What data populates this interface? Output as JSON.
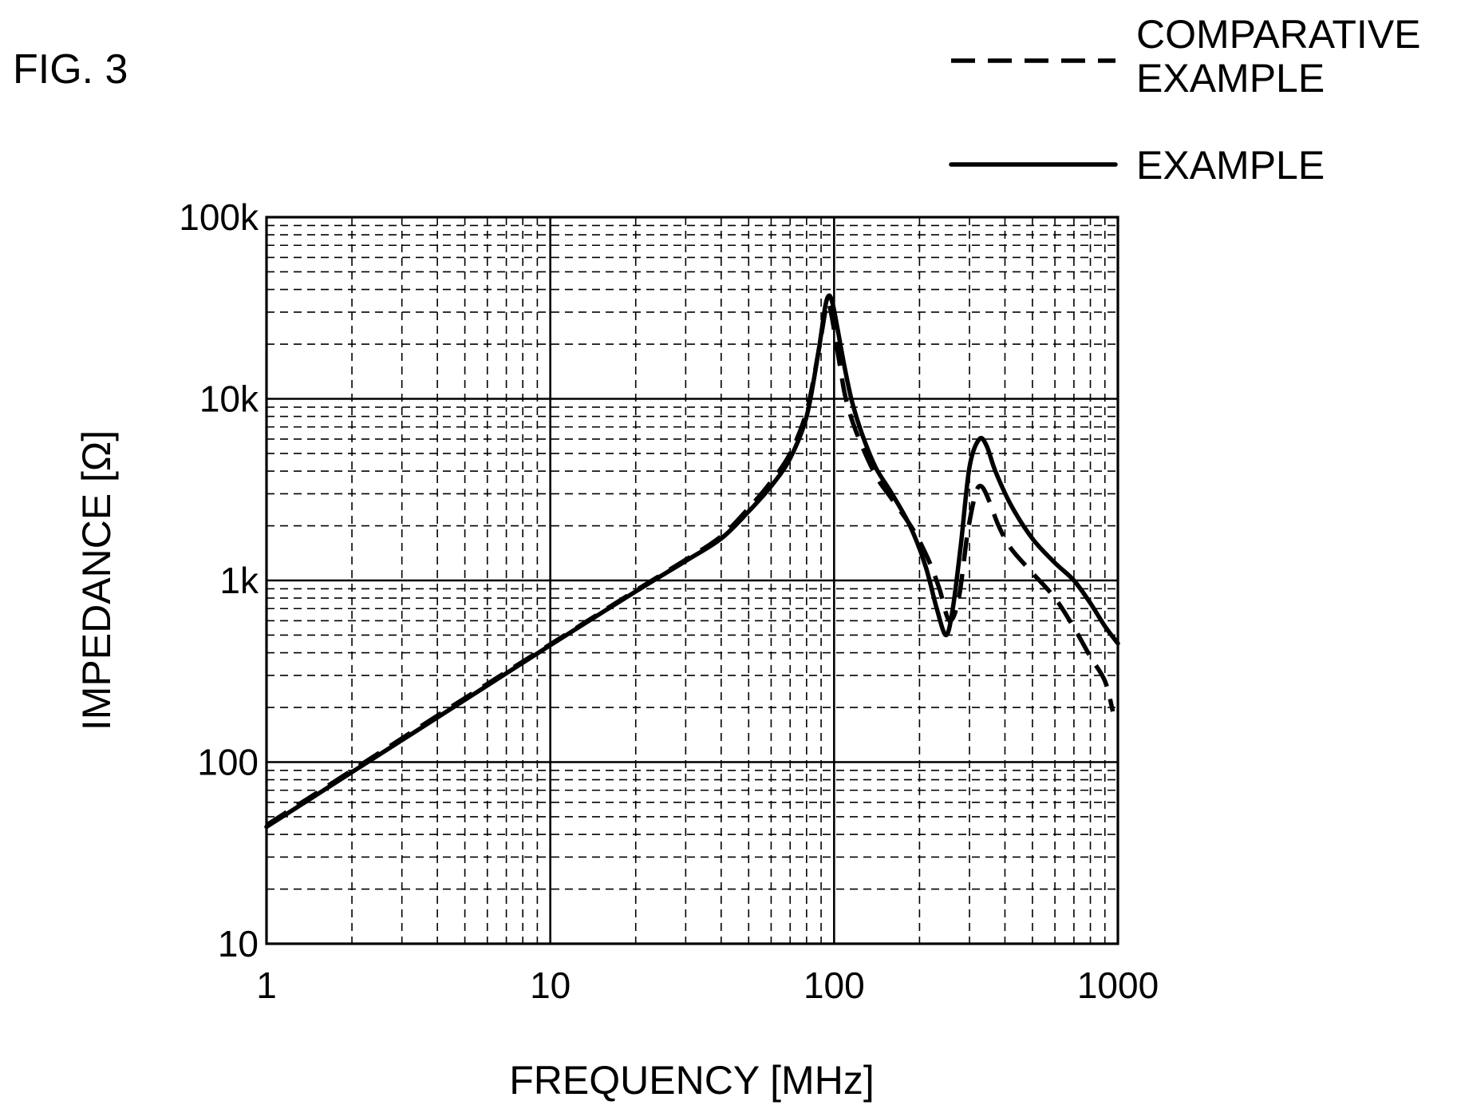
{
  "figure_label": "FIG. 3",
  "chart_data": {
    "type": "line",
    "xlabel": "FREQUENCY [MHz]",
    "ylabel": "IMPEDANCE [Ω]",
    "xscale": "log",
    "yscale": "log",
    "xlim": [
      1,
      1000
    ],
    "ylim": [
      10,
      100000
    ],
    "grid": true,
    "legend_position": "top-right",
    "x_ticks": [
      {
        "value": 1,
        "label": "1"
      },
      {
        "value": 10,
        "label": "10"
      },
      {
        "value": 100,
        "label": "100"
      },
      {
        "value": 1000,
        "label": "1000"
      }
    ],
    "y_ticks": [
      {
        "value": 10,
        "label": "10"
      },
      {
        "value": 100,
        "label": "100"
      },
      {
        "value": 1000,
        "label": "1k"
      },
      {
        "value": 10000,
        "label": "10k"
      },
      {
        "value": 100000,
        "label": "100k"
      }
    ],
    "series": [
      {
        "name": "COMPARATIVE EXAMPLE",
        "line_style": "dashed",
        "points": [
          [
            1,
            45
          ],
          [
            2,
            90
          ],
          [
            5,
            225
          ],
          [
            10,
            445
          ],
          [
            20,
            880
          ],
          [
            30,
            1300
          ],
          [
            40,
            1750
          ],
          [
            50,
            2500
          ],
          [
            60,
            3500
          ],
          [
            70,
            5000
          ],
          [
            80,
            8500
          ],
          [
            88,
            18000
          ],
          [
            93,
            30000
          ],
          [
            95,
            34000
          ],
          [
            97,
            31000
          ],
          [
            100,
            24000
          ],
          [
            105,
            15000
          ],
          [
            110,
            10000
          ],
          [
            120,
            6500
          ],
          [
            140,
            3800
          ],
          [
            160,
            2800
          ],
          [
            190,
            1900
          ],
          [
            215,
            1300
          ],
          [
            235,
            900
          ],
          [
            255,
            600
          ],
          [
            275,
            800
          ],
          [
            295,
            1800
          ],
          [
            315,
            3000
          ],
          [
            330,
            3300
          ],
          [
            350,
            2800
          ],
          [
            380,
            2000
          ],
          [
            420,
            1500
          ],
          [
            500,
            1100
          ],
          [
            600,
            800
          ],
          [
            700,
            550
          ],
          [
            800,
            380
          ],
          [
            900,
            280
          ],
          [
            960,
            190
          ]
        ]
      },
      {
        "name": "EXAMPLE",
        "line_style": "solid",
        "points": [
          [
            1,
            44
          ],
          [
            2,
            88
          ],
          [
            5,
            220
          ],
          [
            10,
            440
          ],
          [
            20,
            870
          ],
          [
            30,
            1280
          ],
          [
            40,
            1700
          ],
          [
            50,
            2400
          ],
          [
            60,
            3300
          ],
          [
            70,
            4700
          ],
          [
            80,
            8000
          ],
          [
            88,
            18000
          ],
          [
            93,
            32000
          ],
          [
            96,
            37000
          ],
          [
            99,
            33000
          ],
          [
            103,
            24000
          ],
          [
            108,
            16000
          ],
          [
            115,
            10000
          ],
          [
            125,
            6500
          ],
          [
            140,
            4200
          ],
          [
            160,
            3000
          ],
          [
            185,
            2000
          ],
          [
            210,
            1200
          ],
          [
            230,
            700
          ],
          [
            248,
            500
          ],
          [
            262,
            700
          ],
          [
            280,
            1600
          ],
          [
            300,
            4200
          ],
          [
            325,
            6000
          ],
          [
            345,
            5500
          ],
          [
            370,
            4000
          ],
          [
            420,
            2600
          ],
          [
            500,
            1700
          ],
          [
            600,
            1250
          ],
          [
            700,
            1000
          ],
          [
            800,
            750
          ],
          [
            900,
            560
          ],
          [
            1000,
            450
          ]
        ]
      }
    ]
  }
}
